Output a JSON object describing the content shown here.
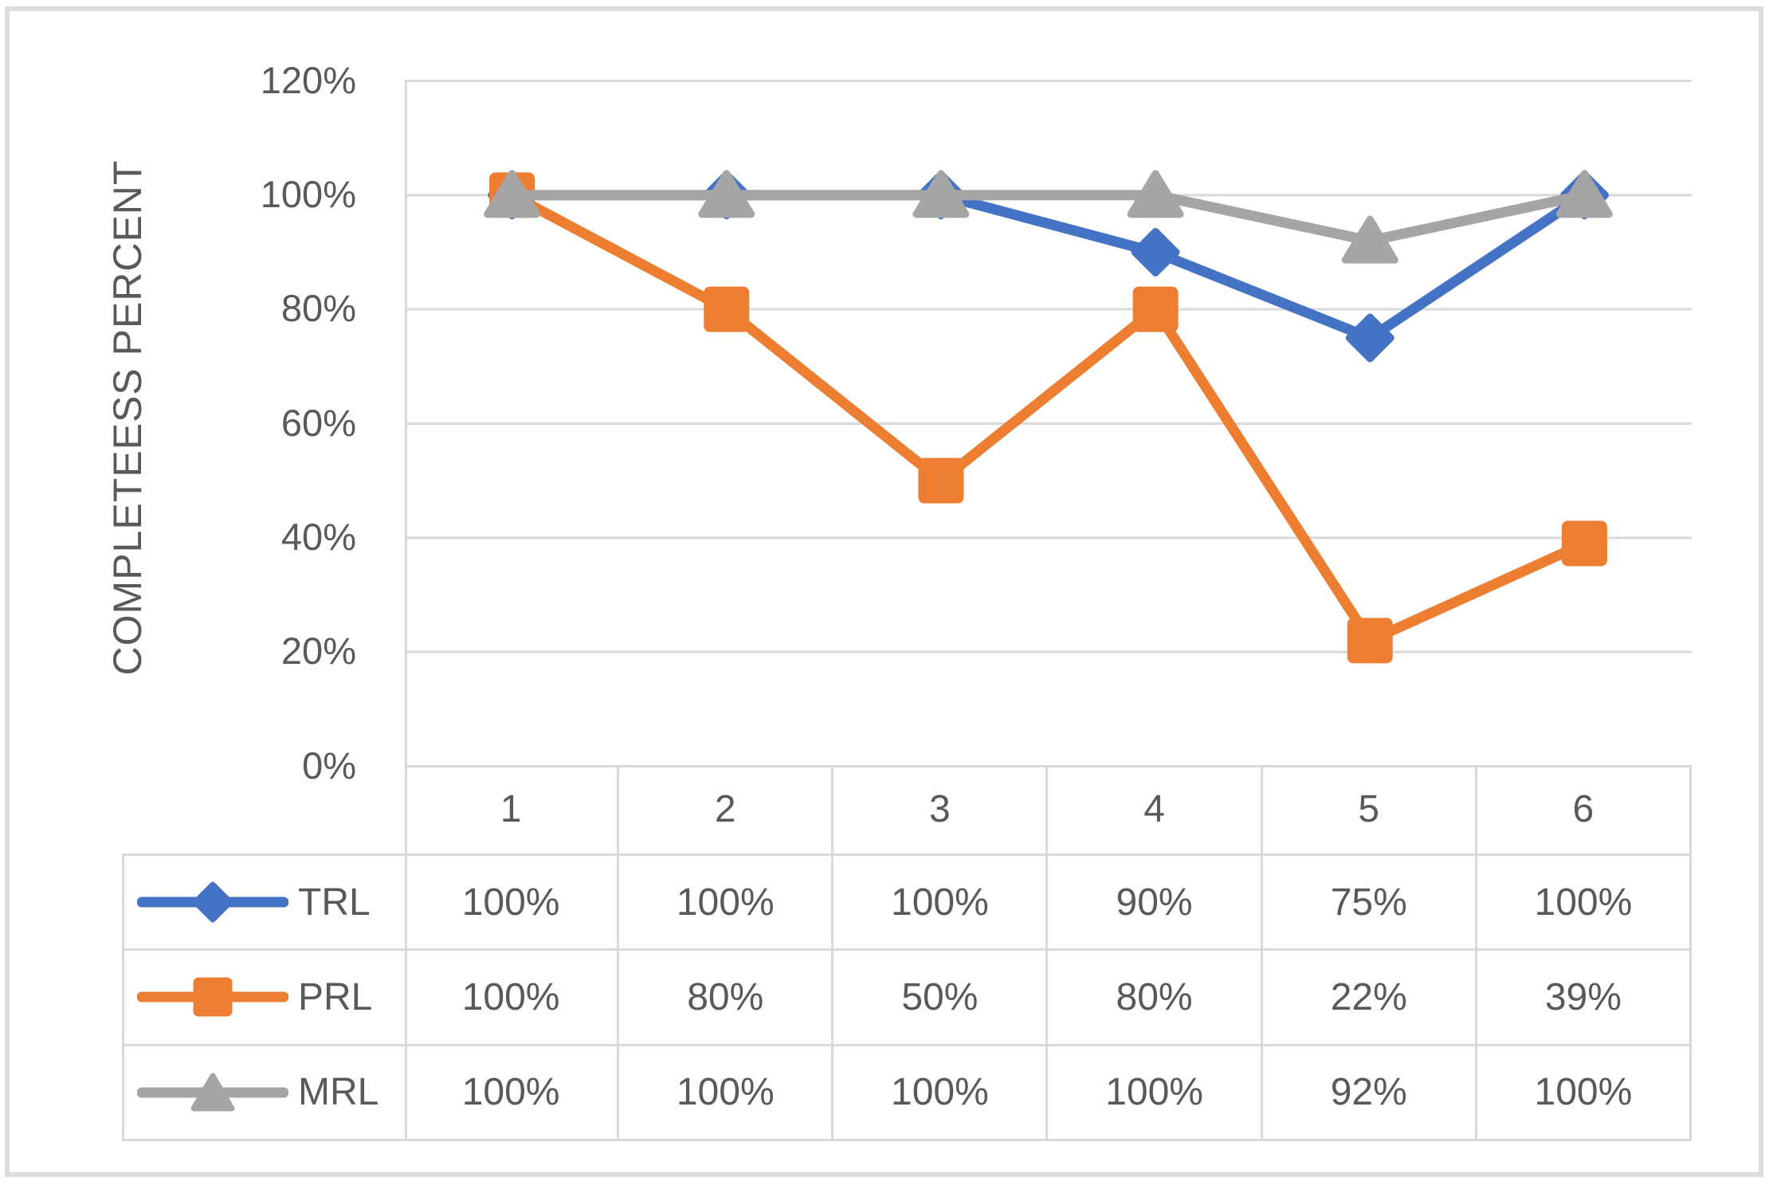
{
  "chart_data": {
    "type": "line",
    "title": "",
    "xlabel": "",
    "ylabel": "COMPLETEESS PERCENT",
    "ylim": [
      0,
      120
    ],
    "grid": true,
    "legend_position": "table-left",
    "categories": [
      "1",
      "2",
      "3",
      "4",
      "5",
      "6"
    ],
    "y_ticks": [
      {
        "label": "120%",
        "value": 120
      },
      {
        "label": "100%",
        "value": 100
      },
      {
        "label": "80%",
        "value": 80
      },
      {
        "label": "60%",
        "value": 60
      },
      {
        "label": "40%",
        "value": 40
      },
      {
        "label": "20%",
        "value": 20
      },
      {
        "label": "0%",
        "value": 0
      }
    ],
    "series": [
      {
        "name": "TRL",
        "marker": "diamond",
        "color": "#4472C4",
        "values": [
          100,
          100,
          100,
          90,
          75,
          100
        ],
        "display": [
          "100%",
          "100%",
          "100%",
          "90%",
          "75%",
          "100%"
        ]
      },
      {
        "name": "PRL",
        "marker": "square",
        "color": "#ED7D31",
        "values": [
          100,
          80,
          50,
          80,
          22,
          39
        ],
        "display": [
          "100%",
          "80%",
          "50%",
          "80%",
          "22%",
          "39%"
        ]
      },
      {
        "name": "MRL",
        "marker": "triangle",
        "color": "#A5A5A5",
        "values": [
          100,
          100,
          100,
          100,
          92,
          100
        ],
        "display": [
          "100%",
          "100%",
          "100%",
          "100%",
          "92%",
          "100%"
        ]
      }
    ],
    "colors": {
      "gridline": "#D9D9D9",
      "table_border": "#D9D9D9",
      "text": "#595959"
    }
  }
}
